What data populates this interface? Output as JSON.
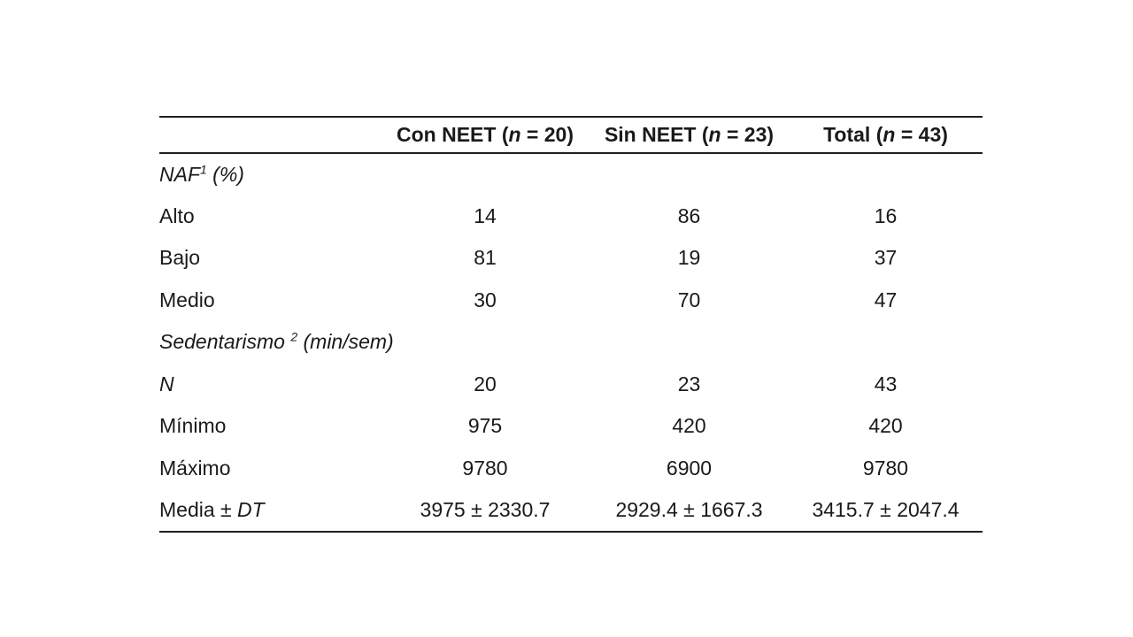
{
  "page": {
    "background_color": "#ffffff",
    "text_color": "#1a1a1a",
    "rule_color": "#1f1f1f"
  },
  "table": {
    "header": {
      "label": "",
      "cols": [
        {
          "pre": "Con NEET (",
          "n_var": "n",
          "post": " = 20)"
        },
        {
          "pre": "Sin NEET (",
          "n_var": "n",
          "post": " = 23)"
        },
        {
          "pre": "Total (",
          "n_var": "n",
          "post": " = 43)"
        }
      ]
    },
    "rows": [
      {
        "pre": "NAF",
        "sup": "1",
        "post": " (%)",
        "v1": "",
        "v2": "",
        "v3": ""
      },
      {
        "pre": "Alto",
        "v1": "14",
        "v2": "86",
        "v3": "16"
      },
      {
        "pre": "Bajo",
        "v1": "81",
        "v2": "19",
        "v3": "37"
      },
      {
        "pre": "Medio",
        "v1": "30",
        "v2": "70",
        "v3": "47"
      },
      {
        "pre": "Sedentarismo ",
        "sup": "2",
        "post": " (min/sem)",
        "v1": "",
        "v2": "",
        "v3": ""
      },
      {
        "pre": "N",
        "v1": "20",
        "v2": "23",
        "v3": "43"
      },
      {
        "pre": "Mínimo",
        "v1": "975",
        "v2": "420",
        "v3": "420"
      },
      {
        "pre": "Máximo",
        "v1": "9780",
        "v2": "6900",
        "v3": "9780"
      },
      {
        "pre": "Media ± ",
        "it": "DT",
        "v1": "3975 ± 2330.7",
        "v2": "2929.4 ± 1667.3",
        "v3": "3415.7 ± 2047.4"
      }
    ]
  }
}
